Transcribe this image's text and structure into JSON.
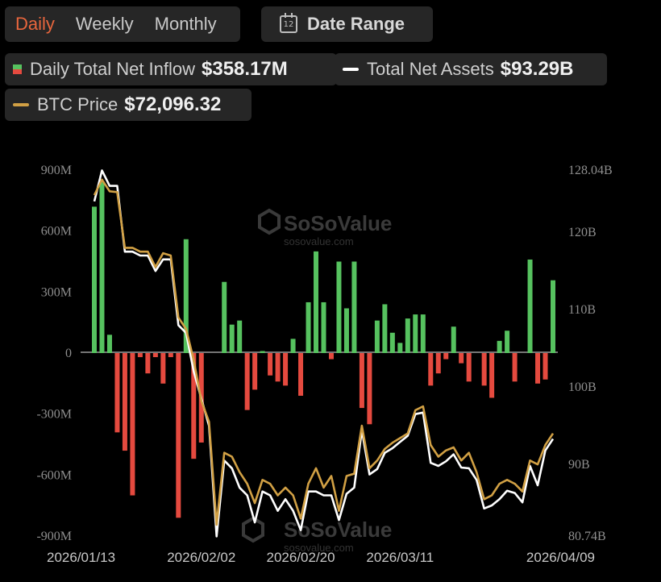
{
  "tabs": {
    "daily": "Daily",
    "weekly": "Weekly",
    "monthly": "Monthly",
    "active": "daily"
  },
  "date_range": {
    "label": "Date Range",
    "icon": "calendar-icon",
    "icon_text": "12"
  },
  "legend": {
    "inflow": {
      "name": "Daily Total Net Inflow",
      "value": "$358.17M"
    },
    "assets": {
      "name": "Total Net Assets",
      "value": "$93.29B"
    },
    "btc": {
      "name": "BTC Price",
      "value": "$72,096.32"
    }
  },
  "colors": {
    "positive": "#56c25f",
    "negative": "#e54a3f",
    "assets_line": "#ffffff",
    "btc_line": "#d1a044",
    "active_tab": "#e8663d"
  },
  "watermark": {
    "name": "SoSoValue",
    "url": "sosovalue.com"
  },
  "chart_data": {
    "type": "bar",
    "left_axis": {
      "ylim": [
        -900,
        900
      ],
      "unit": "M",
      "ticks": [
        "900M",
        "600M",
        "300M",
        "0",
        "-300M",
        "-600M",
        "-900M"
      ]
    },
    "right_axis": {
      "ylim": [
        80.74,
        128.04
      ],
      "unit": "B",
      "ticks": [
        "128.04B",
        "120B",
        "110B",
        "100B",
        "90B",
        "80.74B"
      ]
    },
    "x_ticks": [
      "2026/01/13",
      "2026/02/02",
      "2026/02/20",
      "2026/03/11",
      "2026/04/09"
    ],
    "x_tick_index": [
      0,
      14,
      27,
      40,
      60
    ],
    "series": [
      {
        "name": "Daily Total Net Inflow",
        "kind": "bar",
        "axis": "left",
        "values": [
          720,
          840,
          90,
          -390,
          -480,
          -700,
          -20,
          -100,
          -20,
          -150,
          -20,
          -810,
          560,
          -520,
          -440,
          0,
          0,
          350,
          140,
          160,
          -280,
          -180,
          10,
          -110,
          -140,
          -160,
          70,
          -210,
          250,
          500,
          250,
          -30,
          450,
          220,
          450,
          -270,
          -350,
          160,
          240,
          100,
          50,
          170,
          190,
          190,
          -160,
          -100,
          -30,
          130,
          -50,
          -140,
          0,
          -160,
          -220,
          60,
          110,
          -140,
          0,
          460,
          -150,
          -130,
          358
        ]
      },
      {
        "name": "Total Net Assets",
        "kind": "line",
        "axis": "right",
        "values": [
          124,
          128,
          126,
          126,
          117.5,
          117.5,
          117,
          117,
          115,
          116.5,
          116.5,
          108,
          107,
          102,
          98.5,
          95,
          80.7,
          90.5,
          89.5,
          87,
          86,
          82.5,
          86.5,
          86,
          84,
          85.5,
          84,
          81.5,
          86.5,
          86.5,
          86,
          86,
          82.8,
          86.2,
          87,
          94.4,
          88.7,
          89.4,
          91.5,
          92.1,
          92.9,
          93.7,
          96.5,
          96.7,
          90.2,
          89.8,
          90.4,
          91.3,
          89.6,
          89.5,
          88,
          84.3,
          84.7,
          85.5,
          86.6,
          86.3,
          85.1,
          89.8,
          87.3,
          91.8,
          93.29
        ]
      },
      {
        "name": "BTC Price",
        "kind": "line",
        "axis": "right",
        "values": [
          124.8,
          126.8,
          125.3,
          125.2,
          118,
          118,
          117.5,
          117.5,
          115.5,
          117.3,
          117,
          109,
          107.5,
          103.5,
          98.2,
          95.5,
          82.2,
          91.5,
          91,
          89,
          87.5,
          85,
          88,
          87.5,
          86,
          87,
          86,
          83,
          87.5,
          89.5,
          87,
          88.5,
          84,
          88.5,
          88.8,
          95,
          89.5,
          90.5,
          92,
          92.8,
          93.4,
          94,
          97,
          97.5,
          92.5,
          91,
          91.8,
          92.2,
          90.5,
          91.5,
          89,
          85.5,
          86,
          87.5,
          88,
          87.5,
          86.5,
          90.5,
          90,
          92.5,
          94
        ]
      }
    ]
  }
}
